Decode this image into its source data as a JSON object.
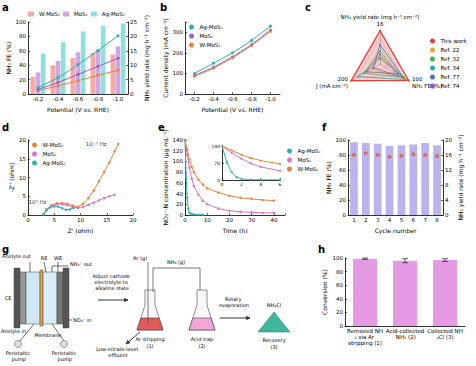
{
  "chart_data": [
    {
      "title": "a",
      "type": "bar",
      "x_label": "Potential (V vs. RHE)",
      "y_label": "NH₃ FE (%)",
      "y2_label": "NH₃ yield rate (mg h⁻¹ cm⁻²)",
      "categories": [
        "-0.2",
        "-0.4",
        "-0.6",
        "-0.8",
        "-1.0"
      ],
      "ylim": [
        0,
        100
      ],
      "yticks": [
        0,
        20,
        40,
        60,
        80,
        100
      ],
      "y2lim": [
        0,
        25
      ],
      "y2ticks": [
        0,
        5,
        10,
        15,
        20,
        25
      ],
      "grid": false,
      "legend": "top",
      "series": [
        {
          "name": "W-MoS₂",
          "type": "bar",
          "color": "#f4aaa5",
          "values": [
            24,
            40,
            50,
            57,
            55
          ]
        },
        {
          "name": "MoS₂",
          "type": "bar",
          "color": "#cda8e4",
          "values": [
            30,
            46,
            58,
            62,
            66
          ]
        },
        {
          "name": "Ag-MoS₂",
          "type": "bar",
          "color": "#8ee0dc",
          "values": [
            56,
            72,
            87,
            95,
            98
          ]
        },
        {
          "name": "W-MoS₂",
          "type": "line",
          "axis": "y2",
          "color": "#e8843c",
          "marker": "circle",
          "values": [
            1.2,
            2.8,
            4.6,
            6.5,
            8.3
          ]
        },
        {
          "name": "MoS₂",
          "type": "line",
          "axis": "y2",
          "color": "#9b5cc4",
          "marker": "circle",
          "values": [
            1.6,
            4.0,
            6.8,
            9.6,
            12.4
          ]
        },
        {
          "name": "Ag-MoS₂",
          "type": "line",
          "axis": "y2",
          "color": "#2bb3ad",
          "marker": "circle",
          "values": [
            2.2,
            5.6,
            10.2,
            15.1,
            20.2
          ]
        }
      ]
    },
    {
      "title": "b",
      "type": "line",
      "x_label": "Potential (V vs. RHE)",
      "y_label": "Current density (mA cm⁻²)",
      "categories": [
        "-0.2",
        "-0.4",
        "-0.6",
        "-0.8",
        "-1.0"
      ],
      "ylim": [
        0,
        350
      ],
      "yticks": [
        0,
        100,
        200,
        300
      ],
      "grid": false,
      "legend": "upper left",
      "marker": "circle",
      "series": [
        {
          "name": "Ag-MoS₂",
          "color": "#2bb3ad",
          "values": [
            100,
            150,
            200,
            260,
            330
          ]
        },
        {
          "name": "MoS₂",
          "color": "#9b5cc4",
          "values": [
            90,
            130,
            180,
            240,
            310
          ]
        },
        {
          "name": "W-MoS₂",
          "color": "#e8843c",
          "values": [
            85,
            125,
            175,
            235,
            305
          ]
        }
      ]
    },
    {
      "title": "c",
      "type": "radar",
      "legend": "right",
      "indicators": [
        {
          "name": "NH₃ yield rate (mg h⁻¹ cm⁻²)",
          "max": 16
        },
        {
          "name": "J (mA cm⁻²)",
          "max": 200
        },
        {
          "name": "NH₃ FE (%)",
          "max": 100
        }
      ],
      "series": [
        {
          "name": "This work",
          "color": "#e8403a",
          "values": [
            15.6,
            195,
            97
          ]
        },
        {
          "name": "Ref. 22",
          "color": "#f0a030",
          "values": [
            3.5,
            60,
            88
          ]
        },
        {
          "name": "Ref. 32",
          "color": "#3cb44b",
          "values": [
            6,
            110,
            75
          ]
        },
        {
          "name": "Ref. 34",
          "color": "#2aa8b8",
          "values": [
            2.5,
            150,
            92
          ]
        },
        {
          "name": "Ref. 77",
          "color": "#4a6fd0",
          "values": [
            9,
            45,
            80
          ]
        },
        {
          "name": "Ref. 74",
          "color": "#8a5cc0",
          "values": [
            4.5,
            90,
            60
          ]
        }
      ]
    },
    {
      "title": "d",
      "type": "line",
      "x_label": "Z' (ohm)",
      "y_label": "-Z'' (ohm)",
      "xlim": [
        0,
        20
      ],
      "xticks": [
        0,
        5,
        10,
        15,
        20
      ],
      "ylim": [
        0,
        20
      ],
      "yticks": [
        0,
        5,
        10,
        15,
        20
      ],
      "grid": false,
      "legend": "upper left",
      "marker": "circle",
      "series": [
        {
          "name": "W-MoS₂",
          "color": "#e8843c",
          "x": [
            3,
            3.5,
            4.5,
            5.5,
            6.5,
            7.5,
            8.5,
            9.5,
            10.5,
            11.5,
            12.5,
            13.5,
            14.5,
            15.5,
            16.5,
            17.2
          ],
          "values": [
            0.2,
            1.5,
            2.6,
            3.1,
            3.2,
            3,
            2.5,
            2.2,
            3,
            4.5,
            6.5,
            9,
            11.5,
            14,
            17,
            19
          ]
        },
        {
          "name": "MoS₂",
          "color": "#e070c8",
          "x": [
            3,
            3.5,
            4.5,
            5.5,
            6.5,
            7.5,
            8.5,
            9.5,
            10.5,
            11.5,
            12.5,
            13.5,
            14.5,
            15.5,
            16.5
          ],
          "values": [
            0.2,
            1.4,
            2.4,
            2.9,
            2.9,
            2.6,
            2.1,
            1.9,
            2.2,
            2.7,
            3.3,
            3.9,
            4.5,
            5,
            5.4
          ]
        },
        {
          "name": "Ag-MoS₂",
          "color": "#2bb3ad",
          "x": [
            3,
            3.5,
            4.2,
            5,
            5.8,
            6.5,
            7.2,
            8,
            8.7
          ],
          "values": [
            0.2,
            1.2,
            2,
            2.3,
            2.2,
            1.8,
            1.4,
            1.5,
            1.9
          ]
        }
      ],
      "annotations": [
        {
          "text": "10⁻² Hz",
          "x": 13,
          "y": 19
        },
        {
          "text": "10⁵ Hz",
          "x": 1.8,
          "y": 3.5
        }
      ]
    },
    {
      "title": "e",
      "type": "line",
      "x_label": "Time (h)",
      "y_label": "NO₃⁻-N concentration (μg mL⁻¹)",
      "xlim": [
        0,
        45
      ],
      "xticks": [
        0,
        10,
        20,
        30,
        40
      ],
      "ylim": [
        0,
        140
      ],
      "yticks": [
        0,
        20,
        40,
        60,
        80,
        100,
        120,
        140
      ],
      "grid": false,
      "legend": "right",
      "marker": "circle",
      "series": [
        {
          "name": "Ag-MoS₂",
          "color": "#2bb3ad",
          "x": [
            0,
            0.5,
            1,
            1.5,
            2,
            3,
            4,
            6,
            8
          ],
          "values": [
            140,
            72,
            32,
            12,
            4,
            1.5,
            0.8,
            0.5,
            0.4
          ]
        },
        {
          "name": "MoS₂",
          "color": "#e070c8",
          "x": [
            0,
            1,
            2,
            3,
            4,
            6,
            8,
            10,
            15,
            20,
            25,
            30,
            35,
            40
          ],
          "values": [
            140,
            112,
            88,
            68,
            54,
            38,
            27,
            20,
            12,
            8,
            6,
            5,
            4,
            4
          ]
        },
        {
          "name": "W-MoS₂",
          "color": "#e8843c",
          "x": [
            0,
            1,
            2,
            3,
            4,
            6,
            8,
            10,
            15,
            20,
            25,
            30,
            35,
            40
          ],
          "values": [
            140,
            122,
            104,
            90,
            80,
            66,
            57,
            50,
            42,
            36,
            32,
            30,
            28,
            27
          ]
        }
      ]
    },
    {
      "type": "line",
      "xlim": [
        0,
        6
      ],
      "xticks": [
        0,
        2,
        4,
        6
      ],
      "ylim": [
        0,
        140
      ],
      "yticks": [
        0,
        70,
        140
      ],
      "grid": false,
      "marker": "circle",
      "series": [
        {
          "name": "Ag-MoS₂",
          "color": "#2bb3ad",
          "x": [
            0,
            0.5,
            1,
            1.5,
            2,
            3,
            4,
            6
          ],
          "values": [
            140,
            72,
            32,
            12,
            4,
            1.5,
            0.8,
            0.5
          ]
        },
        {
          "name": "MoS₂",
          "color": "#e070c8",
          "x": [
            0,
            1,
            2,
            3,
            4,
            6
          ],
          "values": [
            140,
            112,
            88,
            68,
            54,
            38
          ]
        },
        {
          "name": "W-MoS₂",
          "color": "#e8843c",
          "x": [
            0,
            1,
            2,
            3,
            4,
            6
          ],
          "values": [
            140,
            122,
            104,
            90,
            80,
            66
          ]
        }
      ]
    },
    {
      "title": "f",
      "type": "bar",
      "x_label": "Cycle number",
      "y_label": "NH₃ FE (%)",
      "y2_label": "NH₃ yield rate (mg h⁻¹ cm⁻²)",
      "categories": [
        "1",
        "2",
        "3",
        "4",
        "5",
        "6",
        "7",
        "8"
      ],
      "ylim": [
        0,
        100
      ],
      "yticks": [
        0,
        20,
        40,
        60,
        80,
        100
      ],
      "y2lim": [
        0,
        20
      ],
      "y2ticks": [
        0,
        4,
        8,
        12,
        16,
        20
      ],
      "grid": false,
      "series": [
        {
          "type": "bar",
          "color": "#b9b4ec",
          "values": [
            97,
            96,
            95,
            92,
            93,
            94,
            96,
            93
          ]
        },
        {
          "type": "scatter",
          "axis": "y2",
          "color": "#e05a3a",
          "marker": "circle",
          "values": [
            16,
            16.5,
            16,
            15.5,
            15.8,
            16.2,
            16,
            15.7
          ]
        }
      ]
    },
    {
      "title": "g",
      "type": "diagram",
      "labels": {
        "anolyte_out": "Anolyte out",
        "re": "RE",
        "we": "WE",
        "nh4_out": "NH₄⁺ out",
        "ce": "CE",
        "anolyte_in": "Anolyte in",
        "membrane": "Membrane",
        "no3_in": "NO₃⁻ in",
        "pump_1": "Peristaltic pump",
        "pump_2": "Peristaltic pump",
        "adjust": "Adjust cathode electrolyte to alkaline state",
        "ar_g": "Ar (g)",
        "nh3_g": "NH₃ (g)",
        "step_1": "Ar stripping",
        "step_1_no": "(1)",
        "step_2": "Acid trap",
        "step_2_no": "(2)",
        "rotary": "Rotary evaporation",
        "product": "NH₄Cl",
        "step_3": "Recovery",
        "step_3_no": "(3)",
        "effluent": "Low-nitrate-level effluent"
      }
    },
    {
      "title": "h",
      "type": "bar",
      "y_label": "Conversion (%)",
      "categories": [
        "Removed NH₃ via Ar stripping (1)",
        "Acid-collected NH₃ (2)",
        "Collected NH₄Cl (3)"
      ],
      "ylim": [
        0,
        100
      ],
      "yticks": [
        0,
        20,
        40,
        60,
        80,
        100
      ],
      "grid": false,
      "color": "#e59be3",
      "values": [
        99,
        96,
        97
      ],
      "errors": [
        1,
        3,
        2
      ]
    }
  ]
}
